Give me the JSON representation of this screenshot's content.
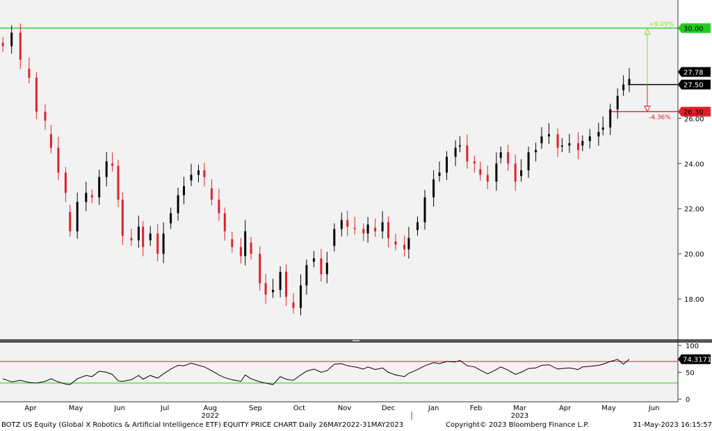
{
  "footer": {
    "left": "BOTZ US Equity (Global X Robotics & Artificial Intelligence ETF) EQUITY PRICE CHART  Daily 26MAY2022-31MAY2023",
    "center": "Copyright© 2023 Bloomberg Finance L.P.",
    "right": "31-May-2023  16:15:57"
  },
  "colors": {
    "up": "#000000",
    "down": "#e0202a",
    "panel_bg": "#f2f2f2",
    "green_line": "#22cc22",
    "red_line": "#e0202a",
    "target_green": "#88dd22",
    "rsi_line": "#000000"
  },
  "chart_data": [
    {
      "type": "candlestick",
      "title": "",
      "ylim": [
        16.4,
        31.0
      ],
      "yticks": [
        "18.00",
        "20.00",
        "22.00",
        "24.00",
        "26.00"
      ],
      "grid": false,
      "series": [
        {
          "name": "",
          "points": [
            [
              "2022-03-27",
              29.2
            ],
            [
              "2022-04-02",
              29.8
            ],
            [
              "2022-04-08",
              28.6
            ],
            [
              "2022-04-14",
              27.8
            ],
            [
              "2022-04-19",
              26.3
            ],
            [
              "2022-04-25",
              25.9
            ],
            [
              "2022-04-29",
              24.7
            ],
            [
              "2022-05-04",
              23.6
            ],
            [
              "2022-05-09",
              22.7
            ],
            [
              "2022-05-12",
              21.0
            ],
            [
              "2022-05-17",
              22.3
            ],
            [
              "2022-05-23",
              22.7
            ],
            [
              "2022-05-27",
              22.5
            ],
            [
              "2022-06-01",
              23.4
            ],
            [
              "2022-06-06",
              24.1
            ],
            [
              "2022-06-10",
              23.9
            ],
            [
              "2022-06-14",
              22.4
            ],
            [
              "2022-06-17",
              20.8
            ],
            [
              "2022-06-23",
              20.6
            ],
            [
              "2022-06-28",
              21.2
            ],
            [
              "2022-07-01",
              20.3
            ],
            [
              "2022-07-06",
              20.9
            ],
            [
              "2022-07-11",
              20.0
            ],
            [
              "2022-07-15",
              20.9
            ],
            [
              "2022-07-20",
              21.8
            ],
            [
              "2022-07-25",
              22.6
            ],
            [
              "2022-07-29",
              23.0
            ],
            [
              "2022-08-03",
              23.5
            ],
            [
              "2022-08-08",
              23.7
            ],
            [
              "2022-08-12",
              23.4
            ],
            [
              "2022-08-17",
              22.4
            ],
            [
              "2022-08-22",
              21.8
            ],
            [
              "2022-08-26",
              21.0
            ],
            [
              "2022-08-31",
              20.3
            ],
            [
              "2022-09-06",
              19.9
            ],
            [
              "2022-09-09",
              21.0
            ],
            [
              "2022-09-13",
              20.0
            ],
            [
              "2022-09-19",
              18.7
            ],
            [
              "2022-09-23",
              18.2
            ],
            [
              "2022-09-28",
              18.4
            ],
            [
              "2022-10-03",
              19.2
            ],
            [
              "2022-10-07",
              18.1
            ],
            [
              "2022-10-12",
              17.6
            ],
            [
              "2022-10-17",
              18.6
            ],
            [
              "2022-10-21",
              19.5
            ],
            [
              "2022-10-26",
              19.8
            ],
            [
              "2022-10-31",
              19.1
            ],
            [
              "2022-11-04",
              19.6
            ],
            [
              "2022-11-09",
              21.1
            ],
            [
              "2022-11-14",
              21.5
            ],
            [
              "2022-11-18",
              21.2
            ],
            [
              "2022-11-23",
              21.1
            ],
            [
              "2022-11-29",
              20.9
            ],
            [
              "2022-12-02",
              21.3
            ],
            [
              "2022-12-07",
              21.0
            ],
            [
              "2022-12-12",
              21.4
            ],
            [
              "2022-12-16",
              20.7
            ],
            [
              "2022-12-21",
              20.4
            ],
            [
              "2022-12-27",
              20.2
            ],
            [
              "2022-12-30",
              20.7
            ],
            [
              "2023-01-05",
              21.4
            ],
            [
              "2023-01-10",
              22.5
            ],
            [
              "2023-01-16",
              23.3
            ],
            [
              "2023-01-20",
              23.6
            ],
            [
              "2023-01-25",
              24.3
            ],
            [
              "2023-01-31",
              24.7
            ],
            [
              "2023-02-03",
              24.8
            ],
            [
              "2023-02-08",
              24.1
            ],
            [
              "2023-02-13",
              24.0
            ],
            [
              "2023-02-17",
              23.5
            ],
            [
              "2023-02-22",
              23.2
            ],
            [
              "2023-02-28",
              24.0
            ],
            [
              "2023-03-03",
              24.5
            ],
            [
              "2023-03-08",
              24.0
            ],
            [
              "2023-03-13",
              23.2
            ],
            [
              "2023-03-17",
              23.7
            ],
            [
              "2023-03-22",
              24.5
            ],
            [
              "2023-03-27",
              24.6
            ],
            [
              "2023-03-31",
              25.2
            ],
            [
              "2023-04-05",
              25.3
            ],
            [
              "2023-04-11",
              24.7
            ],
            [
              "2023-04-14",
              24.8
            ],
            [
              "2023-04-19",
              24.9
            ],
            [
              "2023-04-25",
              24.6
            ],
            [
              "2023-04-28",
              25.0
            ],
            [
              "2023-05-03",
              25.2
            ],
            [
              "2023-05-09",
              25.4
            ],
            [
              "2023-05-12",
              25.6
            ],
            [
              "2023-05-17",
              26.4
            ],
            [
              "2023-05-22",
              27.0
            ],
            [
              "2023-05-26",
              27.5
            ],
            [
              "2023-05-30",
              27.75
            ]
          ]
        }
      ],
      "levels": [
        {
          "value": 30.0,
          "label": "30.00",
          "color": "#22cc22"
        },
        {
          "value": 27.5,
          "label": "27.50",
          "color": "#000000"
        },
        {
          "value": 26.3,
          "label": "26.30",
          "color": "#e0202a"
        }
      ],
      "last_price_label": "27.78",
      "upside": {
        "label": "+9.09%",
        "from": 27.5,
        "to": 30.0
      },
      "downside": {
        "label": "-4.36%",
        "from": 27.5,
        "to": 26.3
      }
    },
    {
      "type": "line",
      "title": "",
      "ylim": [
        -5,
        105
      ],
      "yticks": [
        "0",
        "50",
        "100"
      ],
      "levels": [
        70,
        30
      ],
      "last_value_label": "74.3171",
      "series": [
        {
          "name": "",
          "points": [
            [
              "2022-03-27",
              38
            ],
            [
              "2022-04-02",
              32
            ],
            [
              "2022-04-08",
              35
            ],
            [
              "2022-04-14",
              31
            ],
            [
              "2022-04-19",
              30
            ],
            [
              "2022-04-25",
              33
            ],
            [
              "2022-04-29",
              38
            ],
            [
              "2022-05-04",
              32
            ],
            [
              "2022-05-09",
              28
            ],
            [
              "2022-05-12",
              27
            ],
            [
              "2022-05-17",
              38
            ],
            [
              "2022-05-23",
              44
            ],
            [
              "2022-05-27",
              42
            ],
            [
              "2022-06-01",
              52
            ],
            [
              "2022-06-06",
              50
            ],
            [
              "2022-06-10",
              46
            ],
            [
              "2022-06-14",
              34
            ],
            [
              "2022-06-17",
              33
            ],
            [
              "2022-06-23",
              36
            ],
            [
              "2022-06-28",
              44
            ],
            [
              "2022-07-01",
              37
            ],
            [
              "2022-07-06",
              44
            ],
            [
              "2022-07-11",
              39
            ],
            [
              "2022-07-15",
              47
            ],
            [
              "2022-07-20",
              56
            ],
            [
              "2022-07-25",
              63
            ],
            [
              "2022-07-29",
              62
            ],
            [
              "2022-08-03",
              67
            ],
            [
              "2022-08-08",
              63
            ],
            [
              "2022-08-12",
              60
            ],
            [
              "2022-08-17",
              53
            ],
            [
              "2022-08-22",
              45
            ],
            [
              "2022-08-26",
              40
            ],
            [
              "2022-08-31",
              36
            ],
            [
              "2022-09-06",
              33
            ],
            [
              "2022-09-09",
              45
            ],
            [
              "2022-09-13",
              38
            ],
            [
              "2022-09-19",
              32
            ],
            [
              "2022-09-23",
              30
            ],
            [
              "2022-09-28",
              27
            ],
            [
              "2022-10-03",
              42
            ],
            [
              "2022-10-07",
              37
            ],
            [
              "2022-10-12",
              35
            ],
            [
              "2022-10-17",
              45
            ],
            [
              "2022-10-21",
              52
            ],
            [
              "2022-10-26",
              56
            ],
            [
              "2022-10-31",
              50
            ],
            [
              "2022-11-04",
              53
            ],
            [
              "2022-11-09",
              65
            ],
            [
              "2022-11-14",
              66
            ],
            [
              "2022-11-18",
              62
            ],
            [
              "2022-11-23",
              60
            ],
            [
              "2022-11-29",
              56
            ],
            [
              "2022-12-02",
              60
            ],
            [
              "2022-12-07",
              55
            ],
            [
              "2022-12-12",
              58
            ],
            [
              "2022-12-16",
              50
            ],
            [
              "2022-12-21",
              45
            ],
            [
              "2022-12-27",
              42
            ],
            [
              "2022-12-30",
              48
            ],
            [
              "2023-01-05",
              55
            ],
            [
              "2023-01-10",
              62
            ],
            [
              "2023-01-16",
              68
            ],
            [
              "2023-01-20",
              66
            ],
            [
              "2023-01-25",
              70
            ],
            [
              "2023-01-31",
              69
            ],
            [
              "2023-02-03",
              72
            ],
            [
              "2023-02-08",
              62
            ],
            [
              "2023-02-13",
              60
            ],
            [
              "2023-02-17",
              54
            ],
            [
              "2023-02-22",
              47
            ],
            [
              "2023-02-28",
              55
            ],
            [
              "2023-03-03",
              60
            ],
            [
              "2023-03-08",
              54
            ],
            [
              "2023-03-13",
              46
            ],
            [
              "2023-03-17",
              50
            ],
            [
              "2023-03-22",
              57
            ],
            [
              "2023-03-27",
              58
            ],
            [
              "2023-03-31",
              63
            ],
            [
              "2023-04-05",
              64
            ],
            [
              "2023-04-11",
              56
            ],
            [
              "2023-04-14",
              57
            ],
            [
              "2023-04-19",
              58
            ],
            [
              "2023-04-25",
              55
            ],
            [
              "2023-04-28",
              60
            ],
            [
              "2023-05-03",
              61
            ],
            [
              "2023-05-09",
              63
            ],
            [
              "2023-05-12",
              65
            ],
            [
              "2023-05-17",
              70
            ],
            [
              "2023-05-22",
              74
            ],
            [
              "2023-05-26",
              65
            ],
            [
              "2023-05-30",
              74.3
            ]
          ]
        }
      ]
    }
  ],
  "x_axis": {
    "months": [
      {
        "label": "Apr",
        "date": "2022-04-15"
      },
      {
        "label": "May",
        "date": "2022-05-16"
      },
      {
        "label": "Jun",
        "date": "2022-06-15"
      },
      {
        "label": "Jul",
        "date": "2022-07-16"
      },
      {
        "label": "Aug",
        "date": "2022-08-16"
      },
      {
        "label": "Sep",
        "date": "2022-09-16"
      },
      {
        "label": "Oct",
        "date": "2022-10-16"
      },
      {
        "label": "Nov",
        "date": "2022-11-16"
      },
      {
        "label": "Dec",
        "date": "2022-12-16"
      },
      {
        "label": "Jan",
        "date": "2023-01-16"
      },
      {
        "label": "Feb",
        "date": "2023-02-14"
      },
      {
        "label": "Mar",
        "date": "2023-03-16"
      },
      {
        "label": "Apr",
        "date": "2023-04-16"
      },
      {
        "label": "May",
        "date": "2023-05-16"
      },
      {
        "label": "Jun",
        "date": "2023-06-16"
      }
    ],
    "years": [
      {
        "label": "2022",
        "date": "2022-08-16"
      },
      {
        "label": "2023",
        "date": "2023-03-16"
      }
    ]
  }
}
